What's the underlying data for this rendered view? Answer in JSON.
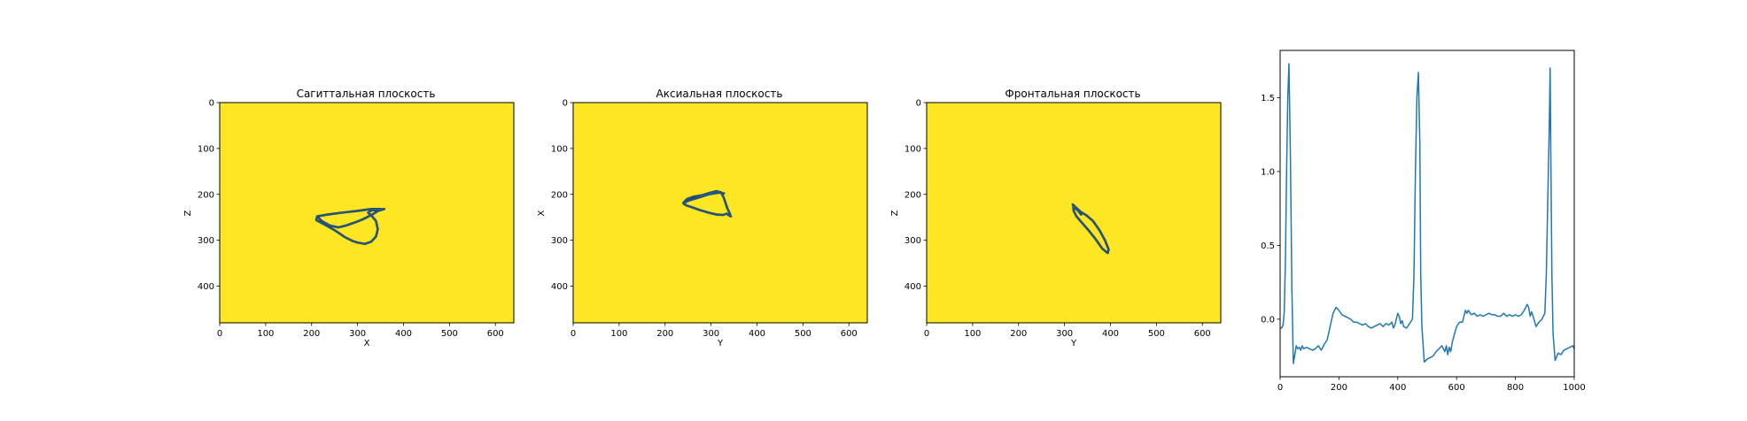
{
  "colors": {
    "background": "#fde725",
    "loop": "#1f5f8b",
    "loop_dark": "#26375a",
    "ecg": "#1f77b4",
    "frame": "#000000"
  },
  "chart_data": [
    {
      "type": "line",
      "title": "Сагиттальная плоскость",
      "xlabel": "X",
      "ylabel": "Z",
      "xlim": [
        0,
        640
      ],
      "ylim": [
        480,
        0
      ],
      "x_ticks": [
        0,
        100,
        200,
        300,
        400,
        500,
        600
      ],
      "y_ticks": [
        0,
        100,
        200,
        300,
        400
      ],
      "background": "#fde725",
      "grid": false,
      "series": [
        {
          "x": [
            350,
            330,
            300,
            265,
            235,
            212,
            210,
            225,
            250,
            272,
            290,
            300,
            316,
            330,
            340,
            344,
            340,
            330,
            323,
            330,
            345,
            358,
            345,
            330,
            310,
            292,
            275,
            258,
            240,
            222,
            214
          ],
          "y": [
            232,
            232,
            236,
            240,
            244,
            248,
            256,
            264,
            278,
            293,
            302,
            305,
            308,
            303,
            292,
            276,
            258,
            246,
            240,
            235,
            233,
            232,
            236,
            245,
            255,
            262,
            268,
            272,
            268,
            258,
            250
          ]
        }
      ]
    },
    {
      "type": "line",
      "title": "Аксиальная плоскость",
      "xlabel": "Y",
      "ylabel": "X",
      "xlim": [
        0,
        640
      ],
      "ylim": [
        480,
        0
      ],
      "x_ticks": [
        0,
        100,
        200,
        300,
        400,
        500,
        600
      ],
      "y_ticks": [
        0,
        100,
        200,
        300,
        400
      ],
      "background": "#fde725",
      "grid": false,
      "series": [
        {
          "x": [
            240,
            248,
            262,
            280,
            300,
            312,
            322,
            328,
            332,
            336,
            340,
            343,
            339,
            334,
            326,
            312,
            295,
            275,
            258,
            246,
            240,
            250,
            270,
            295,
            318,
            328
          ],
          "y": [
            218,
            210,
            205,
            202,
            196,
            193,
            196,
            208,
            220,
            232,
            240,
            248,
            246,
            242,
            245,
            244,
            240,
            234,
            228,
            224,
            220,
            214,
            208,
            200,
            196,
            198
          ]
        }
      ]
    },
    {
      "type": "line",
      "title": "Фронтальная плоскость",
      "xlabel": "Y",
      "ylabel": "Z",
      "xlim": [
        0,
        640
      ],
      "ylim": [
        480,
        0
      ],
      "x_ticks": [
        0,
        100,
        200,
        300,
        400,
        500,
        600
      ],
      "y_ticks": [
        0,
        100,
        200,
        300,
        400
      ],
      "background": "#fde725",
      "grid": false,
      "series": [
        {
          "x": [
            318,
            322,
            335,
            348,
            362,
            376,
            388,
            396,
            394,
            382,
            368,
            352,
            338,
            326,
            320,
            319,
            330,
            336
          ],
          "y": [
            222,
            226,
            238,
            246,
            258,
            278,
            300,
            320,
            328,
            318,
            298,
            278,
            262,
            248,
            236,
            226,
            236,
            244
          ]
        }
      ]
    },
    {
      "type": "line",
      "title": "",
      "xlabel": "",
      "ylabel": "",
      "xlim": [
        0,
        1000
      ],
      "ylim": [
        -0.39,
        1.82
      ],
      "x_ticks": [
        0,
        200,
        400,
        600,
        800,
        1000
      ],
      "y_ticks": [
        0.0,
        0.5,
        1.0,
        1.5
      ],
      "x_tick_labels": [
        "0",
        "200",
        "400",
        "600",
        "800",
        "1000"
      ],
      "y_tick_labels": [
        "0.0",
        "0.5",
        "1.0",
        "1.5"
      ],
      "grid": false,
      "series": [
        {
          "x": [
            0,
            5,
            10,
            14,
            18,
            22,
            26,
            30,
            35,
            40,
            45,
            50,
            55,
            60,
            65,
            70,
            75,
            80,
            90,
            100,
            110,
            120,
            130,
            140,
            150,
            160,
            170,
            180,
            190,
            200,
            210,
            220,
            230,
            240,
            250,
            260,
            270,
            280,
            290,
            300,
            310,
            320,
            330,
            340,
            350,
            360,
            370,
            380,
            385,
            390,
            400,
            405,
            410,
            415,
            420,
            430,
            440,
            450,
            455,
            460,
            465,
            470,
            475,
            478,
            482,
            490,
            500,
            510,
            520,
            530,
            540,
            550,
            560,
            565,
            570,
            575,
            580,
            585,
            590,
            600,
            610,
            620,
            630,
            635,
            640,
            650,
            660,
            670,
            680,
            690,
            700,
            710,
            720,
            730,
            740,
            750,
            760,
            770,
            780,
            790,
            800,
            810,
            820,
            830,
            840,
            845,
            850,
            855,
            860,
            870,
            880,
            890,
            900,
            905,
            910,
            915,
            918,
            920,
            924,
            928,
            935,
            945,
            955,
            965,
            975,
            985,
            995,
            1000
          ],
          "y": [
            -0.06,
            -0.06,
            -0.04,
            0.05,
            0.4,
            1.0,
            1.5,
            1.73,
            1.1,
            0.2,
            -0.3,
            -0.24,
            -0.18,
            -0.2,
            -0.19,
            -0.21,
            -0.18,
            -0.2,
            -0.19,
            -0.2,
            -0.21,
            -0.2,
            -0.18,
            -0.21,
            -0.17,
            -0.14,
            -0.05,
            0.04,
            0.08,
            0.06,
            0.03,
            0.02,
            0.01,
            0.0,
            -0.02,
            -0.02,
            -0.03,
            -0.04,
            -0.03,
            -0.05,
            -0.06,
            -0.05,
            -0.04,
            -0.03,
            -0.05,
            -0.03,
            -0.04,
            -0.02,
            -0.06,
            -0.04,
            0.04,
            0.02,
            -0.03,
            -0.01,
            -0.05,
            -0.06,
            -0.03,
            0.0,
            0.3,
            1.0,
            1.5,
            1.67,
            1.2,
            0.3,
            -0.05,
            -0.29,
            -0.27,
            -0.26,
            -0.25,
            -0.22,
            -0.2,
            -0.18,
            -0.22,
            -0.18,
            -0.24,
            -0.19,
            -0.22,
            -0.16,
            -0.12,
            -0.05,
            -0.02,
            -0.02,
            0.06,
            0.04,
            0.06,
            0.03,
            0.04,
            0.02,
            0.03,
            0.02,
            0.03,
            0.04,
            0.03,
            0.03,
            0.02,
            0.02,
            0.04,
            0.02,
            0.03,
            0.02,
            0.03,
            0.02,
            0.03,
            0.06,
            0.1,
            0.08,
            0.02,
            0.05,
            0.02,
            -0.05,
            -0.02,
            0.0,
            0.04,
            0.3,
            0.8,
            1.3,
            1.7,
            1.2,
            0.3,
            -0.1,
            -0.28,
            -0.23,
            -0.24,
            -0.21,
            -0.2,
            -0.19,
            -0.18,
            -0.2
          ]
        }
      ]
    }
  ]
}
